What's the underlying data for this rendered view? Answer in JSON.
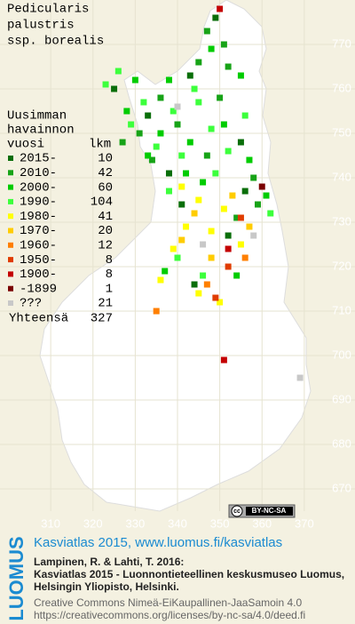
{
  "title": [
    "Pedicularis",
    "palustris",
    "ssp. borealis"
  ],
  "legend": {
    "heading": [
      "Uusimman",
      "havainnon",
      "vuosi"
    ],
    "count_heading": "lkm",
    "rows": [
      {
        "label": "2015-",
        "count": 10,
        "color": "#0a6e0a"
      },
      {
        "label": "2010-",
        "count": 42,
        "color": "#17a317"
      },
      {
        "label": "2000-",
        "count": 60,
        "color": "#00cc00"
      },
      {
        "label": "1990-",
        "count": 104,
        "color": "#3cff3c"
      },
      {
        "label": "1980-",
        "count": 41,
        "color": "#ffff00"
      },
      {
        "label": "1970-",
        "count": 20,
        "color": "#ffcc00"
      },
      {
        "label": "1960-",
        "count": 12,
        "color": "#ff7f00"
      },
      {
        "label": "1950-",
        "count": 8,
        "color": "#e03c00"
      },
      {
        "label": "1900-",
        "count": 8,
        "color": "#c40000"
      },
      {
        "label": "-1899",
        "count": 1,
        "color": "#7a0000"
      },
      {
        "label": "???",
        "count": 21,
        "color": "#c8c8c8"
      }
    ],
    "total_label": "Yhteensä",
    "total": 327
  },
  "axes": {
    "xlim": [
      298,
      382
    ],
    "ylim": [
      665,
      780
    ],
    "xticks": [
      310,
      320,
      330,
      340,
      350,
      360,
      370
    ],
    "yticks": [
      670,
      680,
      690,
      700,
      710,
      720,
      730,
      740,
      750,
      760,
      770
    ]
  },
  "squares": [
    [
      349,
      776,
      0
    ],
    [
      343,
      763,
      0
    ],
    [
      333,
      754,
      0
    ],
    [
      341,
      734,
      0
    ],
    [
      356,
      737,
      0
    ],
    [
      355,
      748,
      0
    ],
    [
      344,
      716,
      0
    ],
    [
      338,
      741,
      0
    ],
    [
      325,
      760,
      0
    ],
    [
      352,
      727,
      0
    ],
    [
      347,
      773,
      1
    ],
    [
      351,
      770,
      1
    ],
    [
      345,
      766,
      1
    ],
    [
      352,
      765,
      1
    ],
    [
      336,
      758,
      1
    ],
    [
      331,
      750,
      1
    ],
    [
      340,
      752,
      1
    ],
    [
      347,
      745,
      1
    ],
    [
      358,
      740,
      1
    ],
    [
      359,
      734,
      1
    ],
    [
      354,
      731,
      1
    ],
    [
      327,
      748,
      1
    ],
    [
      334,
      744,
      1
    ],
    [
      350,
      758,
      1
    ],
    [
      348,
      769,
      2
    ],
    [
      355,
      763,
      2
    ],
    [
      338,
      762,
      2
    ],
    [
      330,
      762,
      2
    ],
    [
      328,
      755,
      2
    ],
    [
      336,
      750,
      2
    ],
    [
      343,
      748,
      2
    ],
    [
      351,
      752,
      2
    ],
    [
      357,
      744,
      2
    ],
    [
      342,
      741,
      2
    ],
    [
      333,
      745,
      2
    ],
    [
      346,
      739,
      2
    ],
    [
      361,
      736,
      2
    ],
    [
      337,
      719,
      2
    ],
    [
      354,
      718,
      2
    ],
    [
      323,
      761,
      3
    ],
    [
      326,
      764,
      3
    ],
    [
      332,
      757,
      3
    ],
    [
      339,
      755,
      3
    ],
    [
      345,
      757,
      3
    ],
    [
      348,
      751,
      3
    ],
    [
      352,
      746,
      3
    ],
    [
      329,
      752,
      3
    ],
    [
      335,
      747,
      3
    ],
    [
      341,
      745,
      3
    ],
    [
      356,
      754,
      3
    ],
    [
      344,
      760,
      3
    ],
    [
      338,
      737,
      3
    ],
    [
      349,
      741,
      3
    ],
    [
      362,
      732,
      3
    ],
    [
      346,
      718,
      3
    ],
    [
      340,
      722,
      3
    ],
    [
      341,
      738,
      4
    ],
    [
      345,
      735,
      4
    ],
    [
      351,
      733,
      4
    ],
    [
      348,
      728,
      4
    ],
    [
      355,
      725,
      4
    ],
    [
      342,
      729,
      4
    ],
    [
      339,
      724,
      4
    ],
    [
      345,
      714,
      4
    ],
    [
      350,
      712,
      4
    ],
    [
      336,
      717,
      4
    ],
    [
      344,
      732,
      5
    ],
    [
      353,
      736,
      5
    ],
    [
      357,
      729,
      5
    ],
    [
      341,
      726,
      5
    ],
    [
      348,
      722,
      5
    ],
    [
      335,
      710,
      6
    ],
    [
      356,
      722,
      6
    ],
    [
      347,
      716,
      6
    ],
    [
      355,
      731,
      7
    ],
    [
      352,
      720,
      7
    ],
    [
      349,
      713,
      7
    ],
    [
      351,
      699,
      8
    ],
    [
      352,
      724,
      8
    ],
    [
      350,
      778,
      8
    ],
    [
      360,
      738,
      9
    ],
    [
      369,
      695,
      10
    ],
    [
      340,
      756,
      10
    ],
    [
      358,
      727,
      10
    ],
    [
      346,
      725,
      10
    ]
  ],
  "footer": {
    "logo": "LUOMUS",
    "headline": "Kasviatlas 2015, www.luomus.fi/kasviatlas",
    "citation": [
      "Lampinen, R. & Lahti, T. 2016:",
      "Kasviatlas 2015 - Luonnontieteellinen keskusmuseo Luomus,",
      "Helsingin Yliopisto, Helsinki."
    ],
    "license": [
      "Creative Commons Nimeä-EiKaupallinen-JaaSamoin 4.0",
      "https://creativecommons.org/licenses/by-nc-sa/4.0/deed.fi"
    ],
    "badge_cc": "cc",
    "badge": "BY-NC-SA"
  }
}
